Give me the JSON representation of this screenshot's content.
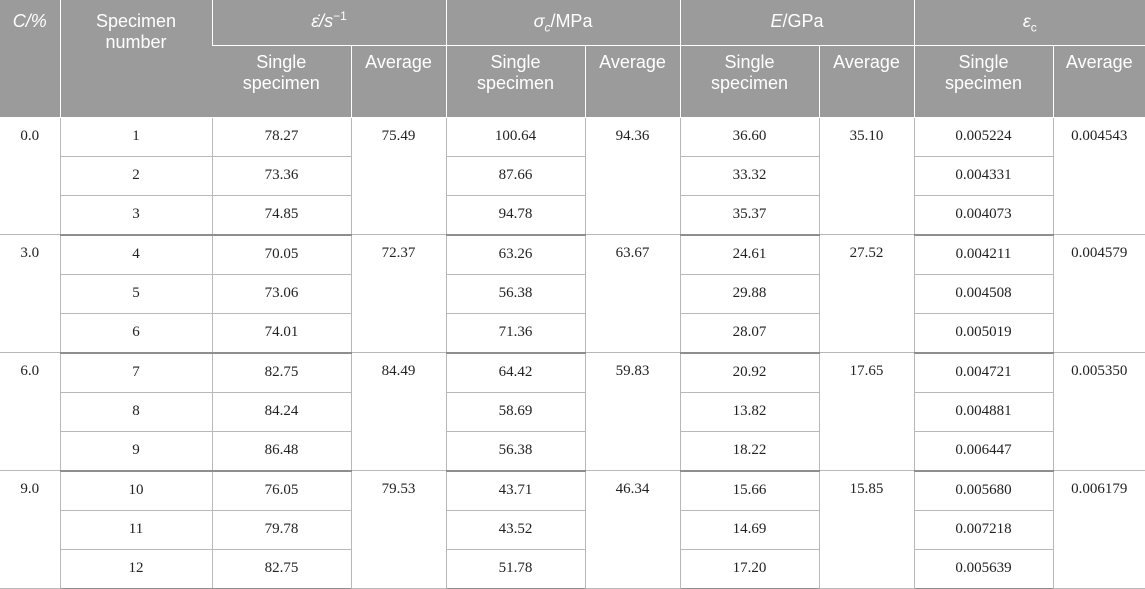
{
  "header": {
    "c_percent": "C/%",
    "specimen_number": "Specimen number",
    "strain_rate": "ε̇/s",
    "strain_rate_exp": "−1",
    "strength": "σ",
    "strength_sub": "c",
    "strength_unit": "/MPa",
    "modulus": "E",
    "modulus_unit": "/GPa",
    "strain": "ε",
    "strain_sub": "c",
    "single_specimen": "Single specimen",
    "average": "Average"
  },
  "groups": [
    {
      "c": "0.0",
      "rows": [
        {
          "num": "1",
          "rate": "78.27",
          "sigma": "100.64",
          "e": "36.60",
          "eps": "0.005224"
        },
        {
          "num": "2",
          "rate": "73.36",
          "sigma": "87.66",
          "e": "33.32",
          "eps": "0.004331"
        },
        {
          "num": "3",
          "rate": "74.85",
          "sigma": "94.78",
          "e": "35.37",
          "eps": "0.004073"
        }
      ],
      "avg": {
        "rate": "75.49",
        "sigma": "94.36",
        "e": "35.10",
        "eps": "0.004543"
      }
    },
    {
      "c": "3.0",
      "rows": [
        {
          "num": "4",
          "rate": "70.05",
          "sigma": "63.26",
          "e": "24.61",
          "eps": "0.004211"
        },
        {
          "num": "5",
          "rate": "73.06",
          "sigma": "56.38",
          "e": "29.88",
          "eps": "0.004508"
        },
        {
          "num": "6",
          "rate": "74.01",
          "sigma": "71.36",
          "e": "28.07",
          "eps": "0.005019"
        }
      ],
      "avg": {
        "rate": "72.37",
        "sigma": "63.67",
        "e": "27.52",
        "eps": "0.004579"
      }
    },
    {
      "c": "6.0",
      "rows": [
        {
          "num": "7",
          "rate": "82.75",
          "sigma": "64.42",
          "e": "20.92",
          "eps": "0.004721"
        },
        {
          "num": "8",
          "rate": "84.24",
          "sigma": "58.69",
          "e": "13.82",
          "eps": "0.004881"
        },
        {
          "num": "9",
          "rate": "86.48",
          "sigma": "56.38",
          "e": "18.22",
          "eps": "0.006447"
        }
      ],
      "avg": {
        "rate": "84.49",
        "sigma": "59.83",
        "e": "17.65",
        "eps": "0.005350"
      }
    },
    {
      "c": "9.0",
      "rows": [
        {
          "num": "10",
          "rate": "76.05",
          "sigma": "43.71",
          "e": "15.66",
          "eps": "0.005680"
        },
        {
          "num": "11",
          "rate": "79.78",
          "sigma": "43.52",
          "e": "14.69",
          "eps": "0.007218"
        },
        {
          "num": "12",
          "rate": "82.75",
          "sigma": "51.78",
          "e": "17.20",
          "eps": "0.005639"
        }
      ],
      "avg": {
        "rate": "79.53",
        "sigma": "46.34",
        "e": "15.85",
        "eps": "0.006179"
      }
    }
  ]
}
